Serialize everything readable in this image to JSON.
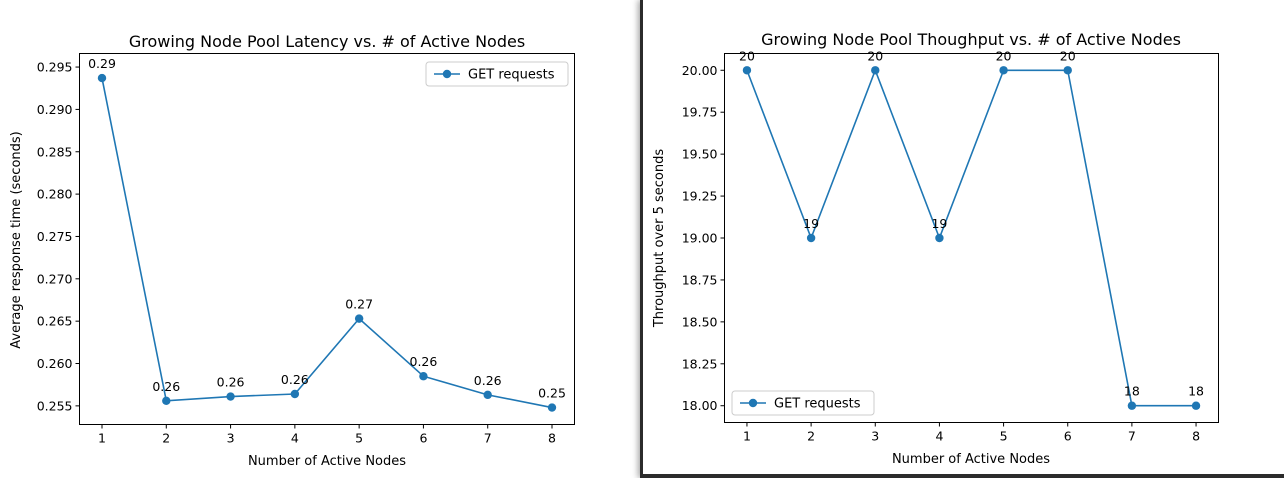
{
  "chart_data": [
    {
      "type": "line",
      "title": "Growing Node Pool Latency vs. # of Active Nodes",
      "xlabel": "Number of Active Nodes",
      "ylabel": "Average response time (seconds)",
      "x": [
        1,
        2,
        3,
        4,
        5,
        6,
        7,
        8
      ],
      "xticks": [
        "1",
        "2",
        "3",
        "4",
        "5",
        "6",
        "7",
        "8"
      ],
      "yticks": [
        "0.255",
        "0.260",
        "0.265",
        "0.270",
        "0.275",
        "0.280",
        "0.285",
        "0.290",
        "0.295"
      ],
      "ytick_values": [
        0.255,
        0.26,
        0.265,
        0.27,
        0.275,
        0.28,
        0.285,
        0.29,
        0.295
      ],
      "xlim": [
        0.65,
        8.35
      ],
      "ylim": [
        0.2528,
        0.2966
      ],
      "series": [
        {
          "name": "GET requests",
          "values": [
            0.2937,
            0.2556,
            0.2561,
            0.2564,
            0.2653,
            0.2585,
            0.2563,
            0.2548
          ],
          "labels": [
            "0.29",
            "0.26",
            "0.26",
            "0.26",
            "0.27",
            "0.26",
            "0.26",
            "0.25"
          ],
          "color": "#1f77b4"
        }
      ],
      "legend": "upper right",
      "grid": false
    },
    {
      "type": "line",
      "title": "Growing Node Pool Thoughput vs. # of Active Nodes",
      "xlabel": "Number of Active Nodes",
      "ylabel": "Throughput over 5 seconds",
      "x": [
        1,
        2,
        3,
        4,
        5,
        6,
        7,
        8
      ],
      "xticks": [
        "1",
        "2",
        "3",
        "4",
        "5",
        "6",
        "7",
        "8"
      ],
      "yticks": [
        "18.00",
        "18.25",
        "18.50",
        "18.75",
        "19.00",
        "19.25",
        "19.50",
        "19.75",
        "20.00"
      ],
      "ytick_values": [
        18.0,
        18.25,
        18.5,
        18.75,
        19.0,
        19.25,
        19.5,
        19.75,
        20.0
      ],
      "xlim": [
        0.65,
        8.35
      ],
      "ylim": [
        17.9,
        20.1
      ],
      "series": [
        {
          "name": "GET requests",
          "values": [
            20,
            19,
            20,
            19,
            20,
            20,
            18,
            18
          ],
          "labels": [
            "20",
            "19",
            "20",
            "19",
            "20",
            "20",
            "18",
            "18"
          ],
          "color": "#1f77b4"
        }
      ],
      "legend": "lower left",
      "grid": false
    }
  ]
}
